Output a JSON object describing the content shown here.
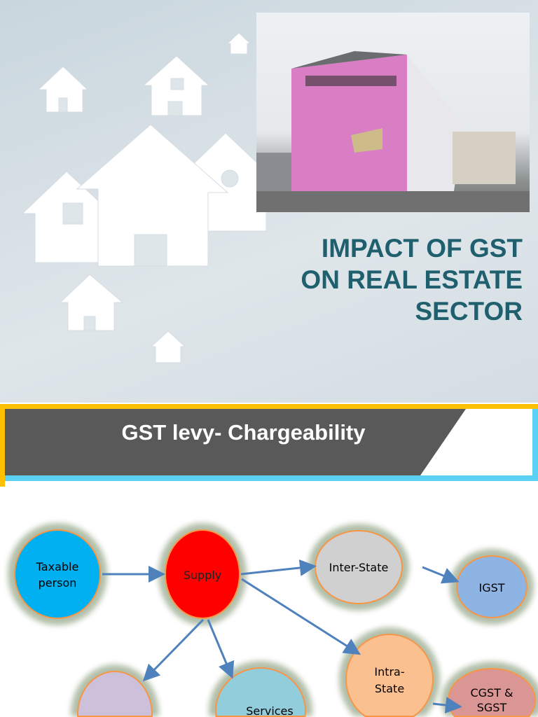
{
  "slide1": {
    "title_lines": [
      "IMPACT OF GST",
      "ON REAL ESTATE",
      "SECTOR"
    ],
    "photo_signage": "Korean signage on pink tilted building"
  },
  "slide2": {
    "heading": "GST levy- Chargeability",
    "nodes": {
      "taxable": [
        "Taxable",
        "person"
      ],
      "supply": "Supply",
      "inter": "Inter-State",
      "igst": "IGST",
      "intra": [
        "Intra-",
        "State"
      ],
      "cgst": [
        "CGST &",
        "SGST"
      ],
      "services": "Services"
    },
    "colors": {
      "taxable": "#00b0f0",
      "supply": "#ff0000",
      "inter": "#d0d0d0",
      "igst": "#8db4e2",
      "intra": "#fac090",
      "cgst": "#da9694",
      "goods": "#ccc0da",
      "services": "#92cddc",
      "arrow": "#4f81bd",
      "banner": "#595959",
      "yellow": "#ffc000",
      "cyan": "#5bd0f5"
    }
  }
}
